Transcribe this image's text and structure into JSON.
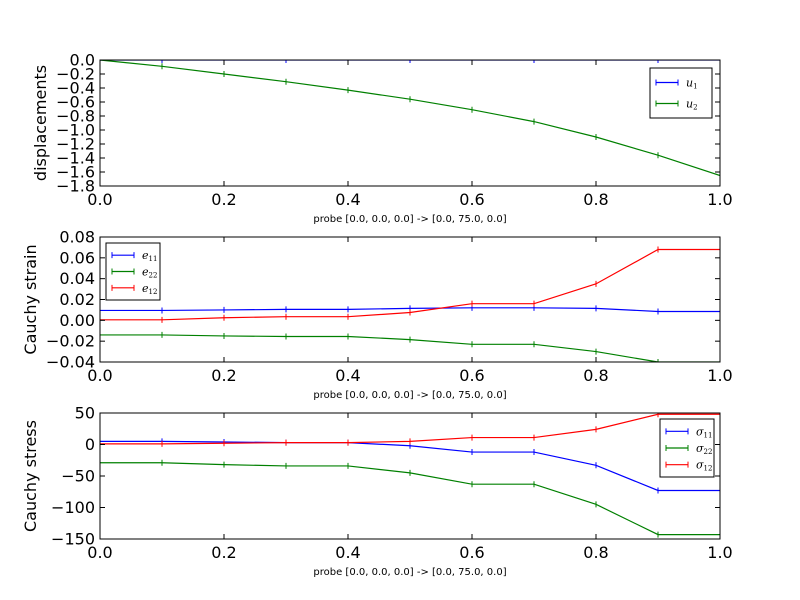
{
  "chart_data": [
    {
      "type": "line",
      "ylabel": "displacements",
      "xlabel": "probe [0.0, 0.0, 0.0] -> [0.0, 75.0, 0.0]",
      "xlim": [
        0.0,
        1.0
      ],
      "ylim": [
        -1.8,
        0.0
      ],
      "x_ticks": [
        "0.0",
        "0.2",
        "0.4",
        "0.6",
        "0.8",
        "1.0"
      ],
      "y_ticks": [
        "0.0",
        "−0.2",
        "−0.4",
        "−0.6",
        "−0.8",
        "−1.0",
        "−1.2",
        "−1.4",
        "−1.6",
        "−1.8"
      ],
      "y_tick_values": [
        0.0,
        -0.2,
        -0.4,
        -0.6,
        -0.8,
        -1.0,
        -1.2,
        -1.4,
        -1.6,
        -1.8
      ],
      "legend_position": "upper right",
      "x": [
        0.0,
        0.1,
        0.2,
        0.3,
        0.4,
        0.5,
        0.6,
        0.7,
        0.8,
        0.9,
        1.0
      ],
      "series": [
        {
          "name": "u",
          "sub": "1",
          "color": "#0000ff",
          "values": [
            0,
            0,
            0,
            0,
            0,
            0,
            0,
            0,
            0,
            0,
            0
          ]
        },
        {
          "name": "u",
          "sub": "2",
          "color": "#008000",
          "values": [
            0.0,
            -0.09,
            -0.2,
            -0.31,
            -0.43,
            -0.56,
            -0.71,
            -0.88,
            -1.1,
            -1.36,
            -1.65
          ]
        }
      ]
    },
    {
      "type": "line",
      "ylabel": "Cauchy strain",
      "xlabel": "probe [0.0, 0.0, 0.0] -> [0.0, 75.0, 0.0]",
      "xlim": [
        0.0,
        1.0
      ],
      "ylim": [
        -0.04,
        0.08
      ],
      "x_ticks": [
        "0.0",
        "0.2",
        "0.4",
        "0.6",
        "0.8",
        "1.0"
      ],
      "y_ticks": [
        "0.08",
        "0.06",
        "0.04",
        "0.02",
        "0.00",
        "−0.02",
        "−0.04"
      ],
      "y_tick_values": [
        0.08,
        0.06,
        0.04,
        0.02,
        0.0,
        -0.02,
        -0.04
      ],
      "legend_position": "upper left",
      "x": [
        0.0,
        0.1,
        0.2,
        0.3,
        0.4,
        0.5,
        0.6,
        0.7,
        0.8,
        0.9,
        1.0
      ],
      "series": [
        {
          "name": "e",
          "sub": "11",
          "color": "#0000ff",
          "values": [
            0.0095,
            0.0095,
            0.01,
            0.0105,
            0.0105,
            0.0115,
            0.012,
            0.012,
            0.0115,
            0.0085,
            0.0085
          ]
        },
        {
          "name": "e",
          "sub": "22",
          "color": "#008000",
          "values": [
            -0.014,
            -0.014,
            -0.015,
            -0.0155,
            -0.0155,
            -0.0185,
            -0.023,
            -0.023,
            -0.03,
            -0.04,
            -0.04
          ]
        },
        {
          "name": "e",
          "sub": "12",
          "color": "#ff0000",
          "values": [
            0.0005,
            0.0005,
            0.0025,
            0.0035,
            0.0035,
            0.0075,
            0.016,
            0.016,
            0.035,
            0.068,
            0.068
          ]
        }
      ]
    },
    {
      "type": "line",
      "ylabel": "Cauchy stress",
      "xlabel": "probe [0.0, 0.0, 0.0] -> [0.0, 75.0, 0.0]",
      "xlim": [
        0.0,
        1.0
      ],
      "ylim": [
        -150,
        50
      ],
      "x_ticks": [
        "0.0",
        "0.2",
        "0.4",
        "0.6",
        "0.8",
        "1.0"
      ],
      "y_ticks": [
        "50",
        "0",
        "−50",
        "−100",
        "−150"
      ],
      "y_tick_values": [
        50,
        0,
        -50,
        -100,
        -150
      ],
      "legend_position": "upper right",
      "x": [
        0.0,
        0.1,
        0.2,
        0.3,
        0.4,
        0.5,
        0.6,
        0.7,
        0.8,
        0.9,
        1.0
      ],
      "series": [
        {
          "name": "σ",
          "sub": "11",
          "color": "#0000ff",
          "values": [
            5,
            5,
            4,
            3,
            3,
            -2,
            -12,
            -12,
            -33,
            -73,
            -73
          ]
        },
        {
          "name": "σ",
          "sub": "22",
          "color": "#008000",
          "values": [
            -29,
            -29,
            -32,
            -34,
            -34,
            -45,
            -63,
            -63,
            -95,
            -143,
            -143
          ]
        },
        {
          "name": "σ",
          "sub": "12",
          "color": "#ff0000",
          "values": [
            1,
            1,
            2,
            3,
            3,
            5,
            11,
            11,
            24,
            48,
            48
          ]
        }
      ]
    }
  ]
}
